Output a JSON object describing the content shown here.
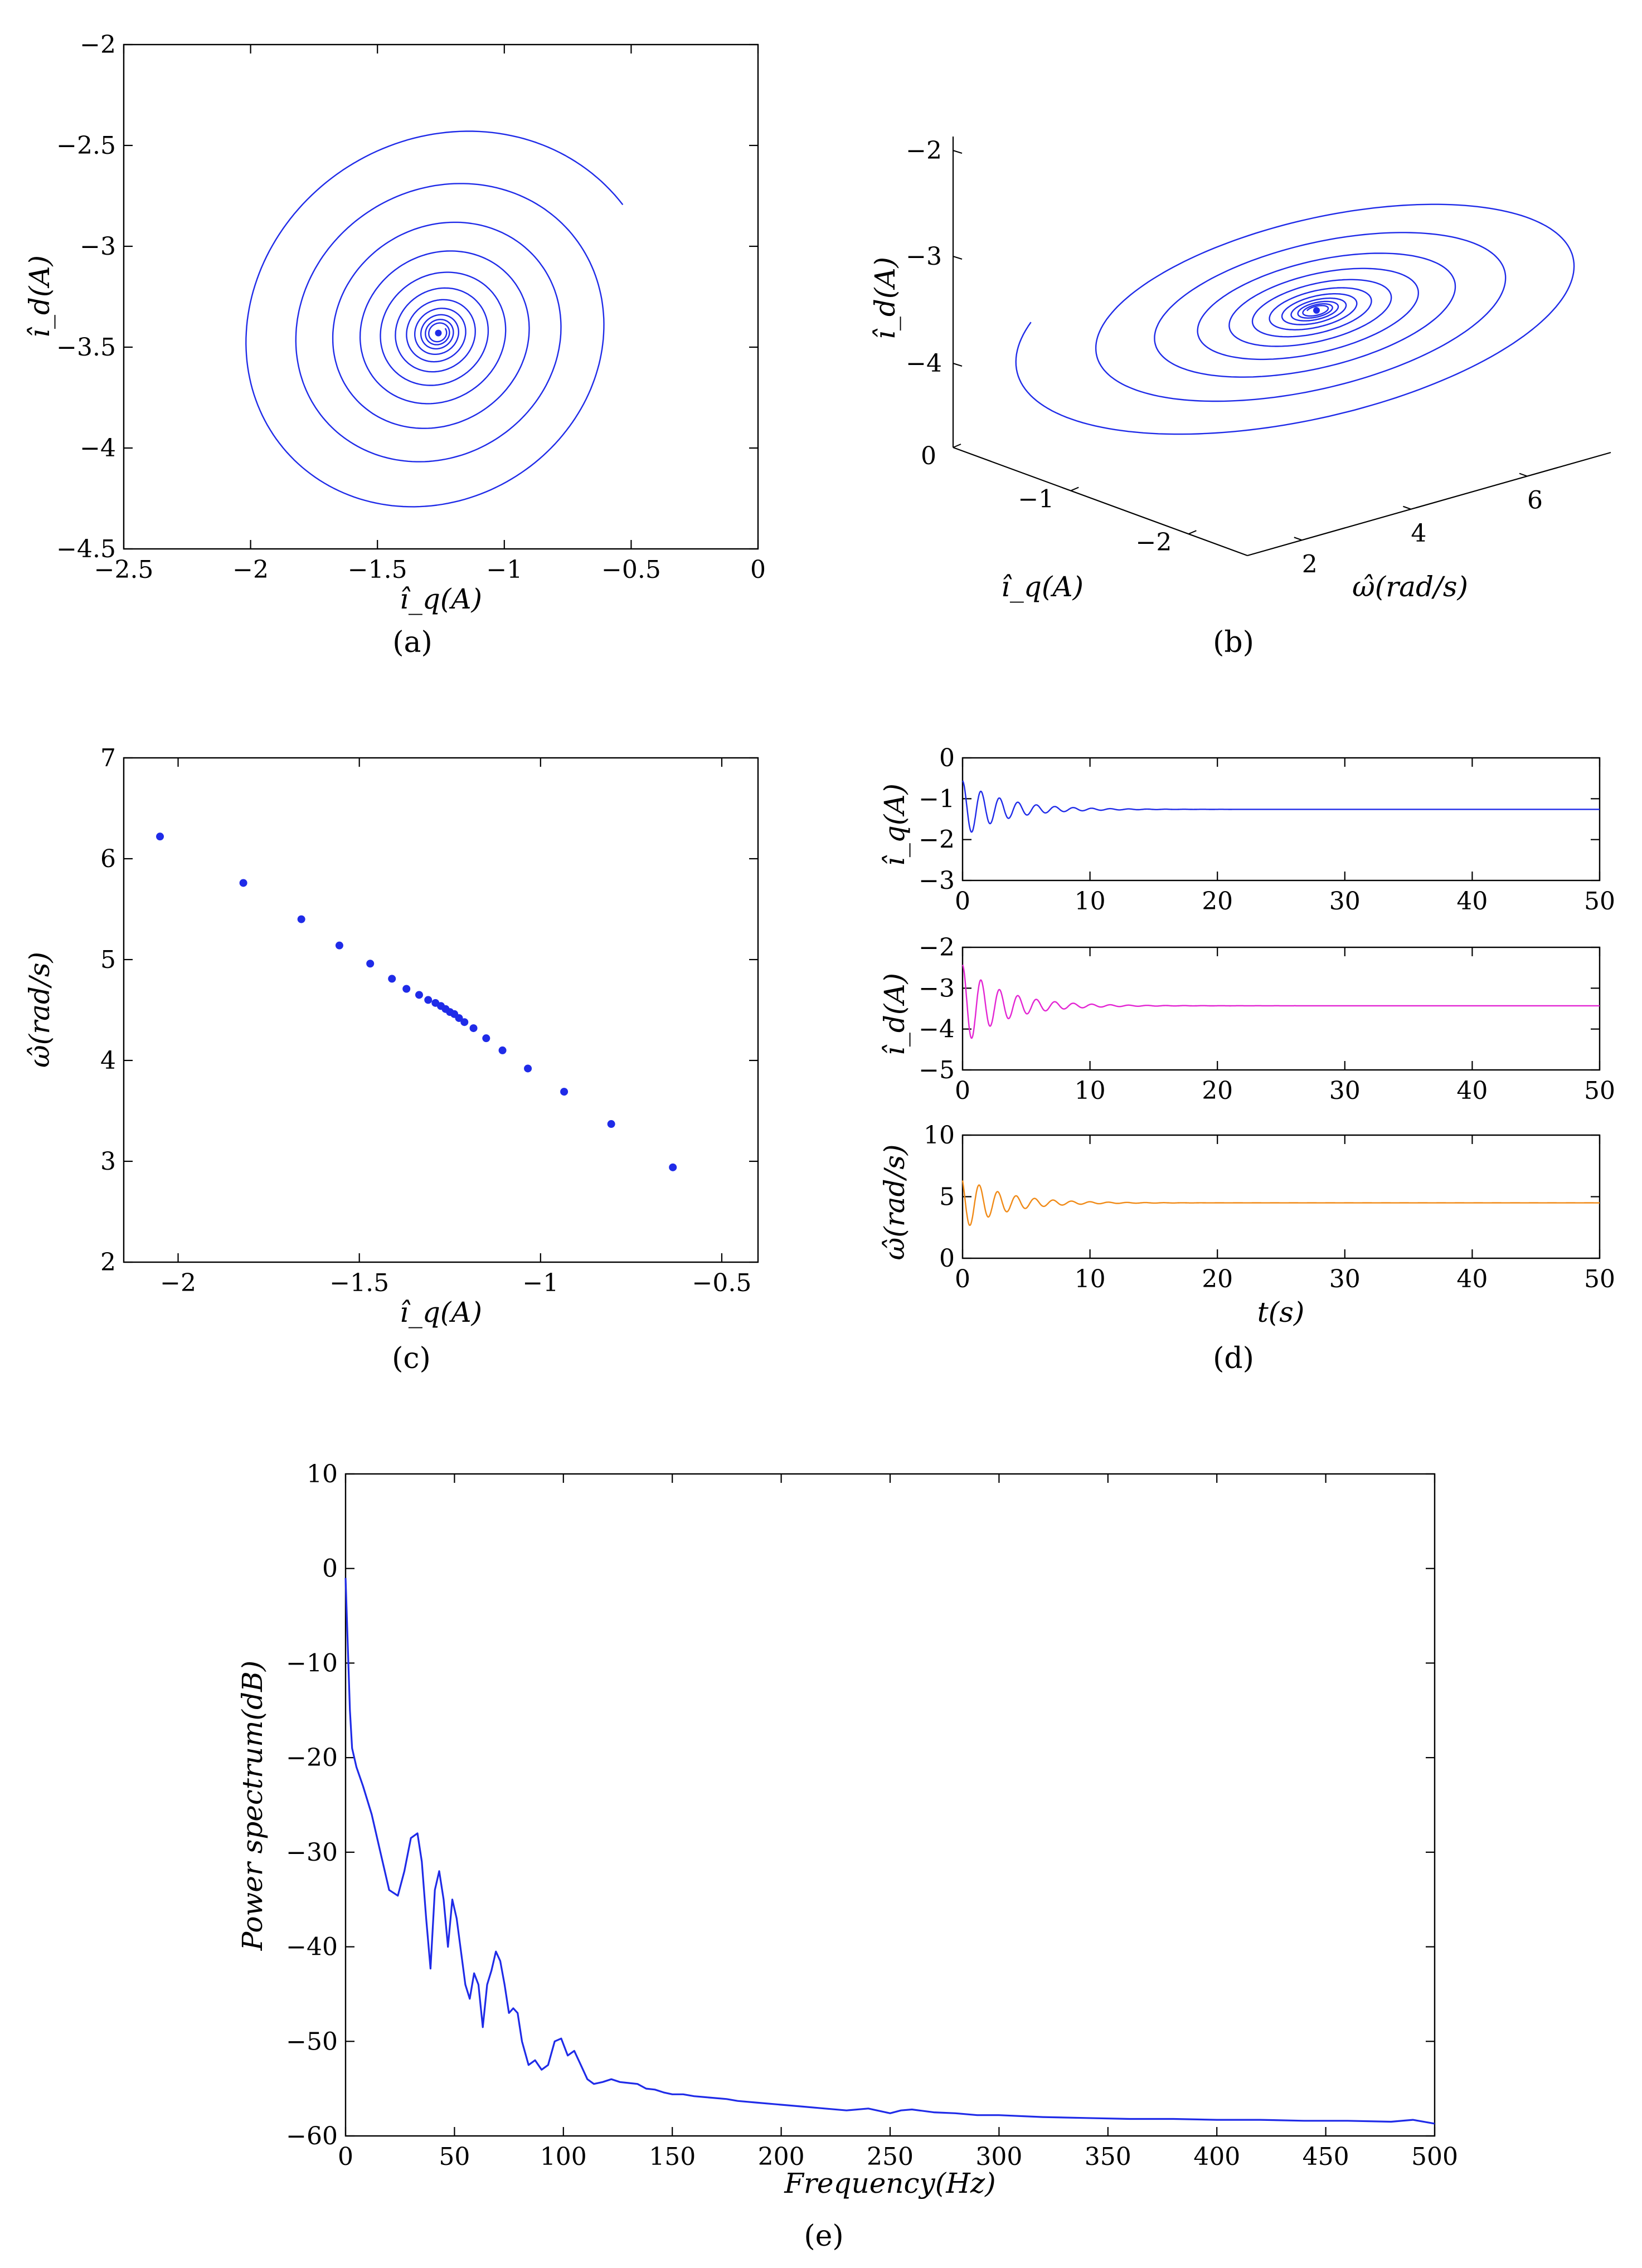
{
  "figure": {
    "colors": {
      "blue": "#1f2be8",
      "magenta": "#e325d3",
      "orange": "#f08a17",
      "axis": "#000000"
    },
    "panels": {
      "a": {
        "caption": "(a)",
        "xlabel": "î_q(A)",
        "ylabel": "î_d(A)"
      },
      "b": {
        "caption": "(b)",
        "xlabel": "ω̂(rad/s)",
        "ylabel": "î_d(A)",
        "zlabel_side": "î_q(A)"
      },
      "c": {
        "caption": "(c)",
        "xlabel": "î_q(A)",
        "ylabel": "ω̂(rad/s)"
      },
      "d": {
        "caption": "(d)",
        "xlabel": "t(s)",
        "ylabel_top": "î_q(A)",
        "ylabel_mid": "î_d(A)",
        "ylabel_bot": "ω̂(rad/s)"
      },
      "e": {
        "caption": "(e)",
        "xlabel": "Frequency(Hz)",
        "ylabel": "Power spectrum(dB)"
      }
    }
  },
  "chart_data": [
    {
      "id": "a",
      "type": "line",
      "title": "",
      "xlabel": "î_q(A)",
      "ylabel": "î_d(A)",
      "xlim": [
        -2.5,
        0
      ],
      "ylim": [
        -4.5,
        -2
      ],
      "xticks": [
        "-2.5",
        "-2",
        "-1.5",
        "-1",
        "-0.5",
        "0"
      ],
      "yticks": [
        "-2",
        "-2.5",
        "-3",
        "-3.5",
        "-4",
        "-4.5"
      ],
      "series": [
        {
          "name": "trajectory",
          "color": "#1f2be8",
          "description": "damped spiral from (-0.57, -2.9) converging to (-1.26, -3.43)",
          "start": [
            -0.57,
            -2.9
          ],
          "center": [
            -1.26,
            -3.43
          ]
        }
      ]
    },
    {
      "id": "b",
      "type": "line",
      "title": "",
      "xlabel": "ω̂(rad/s)",
      "ylabel": "î_d(A)",
      "zlabel": "î_q(A)",
      "axis_ticks": {
        "id": [
          "-2",
          "-3",
          "-4"
        ],
        "iq": [
          "0",
          "-1",
          "-2"
        ],
        "omega": [
          "2",
          "4",
          "6"
        ]
      },
      "series": [
        {
          "name": "3D trajectory",
          "color": "#1f2be8",
          "description": "spiral converging to (-1.26, -3.43, 4.5)"
        }
      ]
    },
    {
      "id": "c",
      "type": "scatter",
      "title": "",
      "xlabel": "î_q(A)",
      "ylabel": "ω̂(rad/s)",
      "xlim": [
        -2.15,
        -0.4
      ],
      "ylim": [
        2,
        7
      ],
      "xticks": [
        "-2",
        "-1.5",
        "-1",
        "-0.5"
      ],
      "yticks": [
        "7",
        "6",
        "5",
        "4",
        "3",
        "2"
      ],
      "series": [
        {
          "name": "Poincaré points",
          "color": "#1f2be8",
          "x": [
            -2.05,
            -1.82,
            -1.66,
            -1.555,
            -1.47,
            -1.41,
            -1.37,
            -1.335,
            -1.31,
            -1.29,
            -1.275,
            -1.262,
            -1.25,
            -1.238,
            -1.225,
            -1.21,
            -1.185,
            -1.15,
            -1.105,
            -1.035,
            -0.935,
            -0.805,
            -0.635
          ],
          "y": [
            6.22,
            5.76,
            5.4,
            5.14,
            4.96,
            4.81,
            4.71,
            4.65,
            4.6,
            4.57,
            4.54,
            4.51,
            4.48,
            4.46,
            4.42,
            4.38,
            4.32,
            4.22,
            4.1,
            3.92,
            3.69,
            3.37,
            2.94
          ]
        }
      ]
    },
    {
      "id": "d",
      "type": "line",
      "title": "",
      "xlabel": "t(s)",
      "subplots": [
        {
          "ylabel": "î_q(A)",
          "xlim": [
            0,
            50
          ],
          "ylim": [
            -3,
            0
          ],
          "xticks": [
            "0",
            "10",
            "20",
            "30",
            "40",
            "50"
          ],
          "yticks": [
            "0",
            "-1",
            "-2",
            "-3"
          ],
          "color": "#1f2be8",
          "steady": -1.26,
          "amplitude": 0.7
        },
        {
          "ylabel": "î_d(A)",
          "xlim": [
            0,
            50
          ],
          "ylim": [
            -5,
            -2
          ],
          "xticks": [
            "0",
            "10",
            "20",
            "30",
            "40",
            "50"
          ],
          "yticks": [
            "-2",
            "-3",
            "-4",
            "-5"
          ],
          "color": "#e325d3",
          "steady": -3.43,
          "amplitude": 1.0
        },
        {
          "ylabel": "ω̂(rad/s)",
          "xlim": [
            0,
            50
          ],
          "ylim": [
            0,
            10
          ],
          "xticks": [
            "0",
            "10",
            "20",
            "30",
            "40",
            "50"
          ],
          "yticks": [
            "10",
            "5",
            "0"
          ],
          "color": "#f08a17",
          "steady": 4.5,
          "amplitude": 2.2
        }
      ]
    },
    {
      "id": "e",
      "type": "line",
      "title": "",
      "xlabel": "Frequency(Hz)",
      "ylabel": "Power spectrum(dB)",
      "xlim": [
        0,
        500
      ],
      "ylim": [
        -60,
        10
      ],
      "xticks": [
        "0",
        "50",
        "100",
        "150",
        "200",
        "250",
        "300",
        "350",
        "400",
        "450",
        "500"
      ],
      "yticks": [
        "10",
        "0",
        "-10",
        "-20",
        "-30",
        "-40",
        "-50",
        "-60"
      ],
      "series": [
        {
          "name": "spectrum",
          "color": "#1f2be8",
          "x": [
            0,
            1,
            2,
            3,
            5,
            8,
            12,
            16,
            20,
            24,
            27,
            30,
            33,
            35,
            37,
            39,
            41,
            43,
            45,
            47,
            49,
            51,
            53,
            55,
            57,
            59,
            61,
            63,
            65,
            67,
            69,
            71,
            73,
            75,
            77,
            79,
            81,
            84,
            87,
            90,
            93,
            96,
            99,
            102,
            105,
            108,
            111,
            114,
            118,
            122,
            126,
            130,
            134,
            138,
            142,
            146,
            150,
            155,
            160,
            165,
            170,
            175,
            180,
            190,
            200,
            210,
            220,
            230,
            240,
            250,
            255,
            260,
            270,
            280,
            290,
            300,
            320,
            340,
            360,
            380,
            400,
            420,
            440,
            460,
            480,
            490,
            500
          ],
          "y": [
            -1,
            -8,
            -15,
            -19,
            -21,
            -23,
            -26,
            -30,
            -34,
            -34.6,
            -32,
            -28.5,
            -28,
            -31,
            -37,
            -42.3,
            -34,
            -32,
            -35,
            -40,
            -35,
            -37,
            -40.5,
            -44,
            -45.5,
            -42.8,
            -44,
            -48.5,
            -44,
            -42.5,
            -40.5,
            -41.5,
            -44,
            -47,
            -46.5,
            -47,
            -50,
            -52.5,
            -52,
            -53,
            -52.5,
            -50,
            -49.7,
            -51.5,
            -51,
            -52.5,
            -54,
            -54.5,
            -54.3,
            -54,
            -54.3,
            -54.4,
            -54.5,
            -55,
            -55.1,
            -55.4,
            -55.6,
            -55.6,
            -55.8,
            -55.9,
            -56,
            -56.1,
            -56.3,
            -56.5,
            -56.7,
            -56.9,
            -57.1,
            -57.3,
            -57.1,
            -57.6,
            -57.3,
            -57.2,
            -57.5,
            -57.6,
            -57.8,
            -57.8,
            -58.0,
            -58.1,
            -58.2,
            -58.2,
            -58.3,
            -58.3,
            -58.4,
            -58.4,
            -58.5,
            -58.3,
            -58.7
          ]
        }
      ]
    }
  ]
}
